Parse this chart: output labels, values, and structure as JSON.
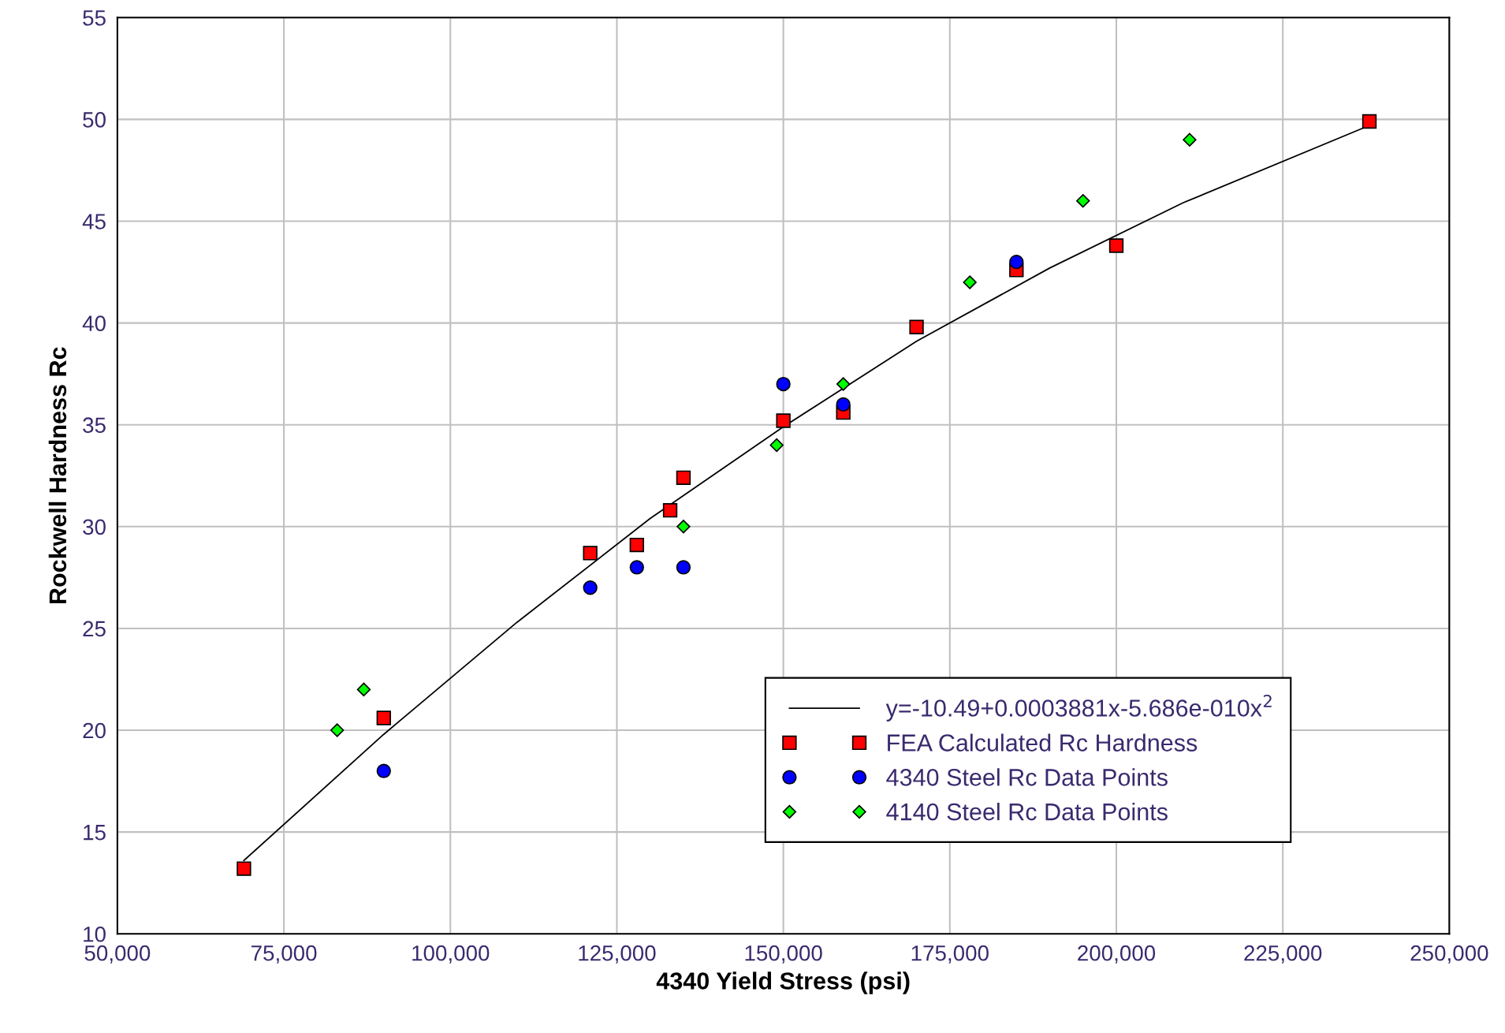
{
  "chart_data": {
    "type": "scatter",
    "xlabel": "4340 Yield Stress (psi)",
    "ylabel": "Rockwell Hardness Rc",
    "xlim": [
      50000,
      250000
    ],
    "ylim": [
      10,
      55
    ],
    "xticks": [
      {
        "value": 50000,
        "label": "50,000"
      },
      {
        "value": 75000,
        "label": "75,000"
      },
      {
        "value": 100000,
        "label": "100,000"
      },
      {
        "value": 125000,
        "label": "125,000"
      },
      {
        "value": 150000,
        "label": "150,000"
      },
      {
        "value": 175000,
        "label": "175,000"
      },
      {
        "value": 200000,
        "label": "200,000"
      },
      {
        "value": 225000,
        "label": "225,000"
      },
      {
        "value": 250000,
        "label": "250,000"
      }
    ],
    "yticks": [
      10,
      15,
      20,
      25,
      30,
      35,
      40,
      45,
      50,
      55
    ],
    "grid": true,
    "legend": "bottom right",
    "series": [
      {
        "name": "y=-10.49+0.0003881x-5.686e-010x$^{2}$",
        "type": "line",
        "color": "#000000",
        "marker": "none",
        "line_style": "solid",
        "x": [
          69000,
          90000,
          110000,
          130000,
          150000,
          170000,
          190000,
          210000,
          238000
        ],
        "values": [
          13.6,
          19.8,
          25.3,
          30.4,
          34.9,
          39.1,
          42.7,
          45.9,
          49.7
        ]
      },
      {
        "name": "FEA Calculated Rc Hardness",
        "color": "#ff0000",
        "marker": "square",
        "x": [
          69000,
          90000,
          121000,
          128000,
          133000,
          135000,
          150000,
          159000,
          170000,
          185000,
          200000,
          238000
        ],
        "values": [
          13.2,
          20.6,
          28.7,
          29.1,
          30.8,
          32.4,
          35.2,
          35.6,
          39.8,
          42.6,
          43.8,
          49.9
        ]
      },
      {
        "name": "4340 Steel Rc Data Points",
        "color": "#0000ff",
        "marker": "circle",
        "x": [
          90000,
          121000,
          128000,
          135000,
          150000,
          159000,
          185000
        ],
        "values": [
          18,
          27,
          28,
          28,
          37,
          36,
          43
        ]
      },
      {
        "name": "4140 Steel Rc Data Points",
        "color": "#00ff00",
        "marker": "diamond",
        "x": [
          83000,
          87000,
          135000,
          149000,
          159000,
          178000,
          195000,
          211000
        ],
        "values": [
          20,
          22,
          30,
          34,
          37,
          42,
          46,
          49
        ]
      }
    ]
  }
}
